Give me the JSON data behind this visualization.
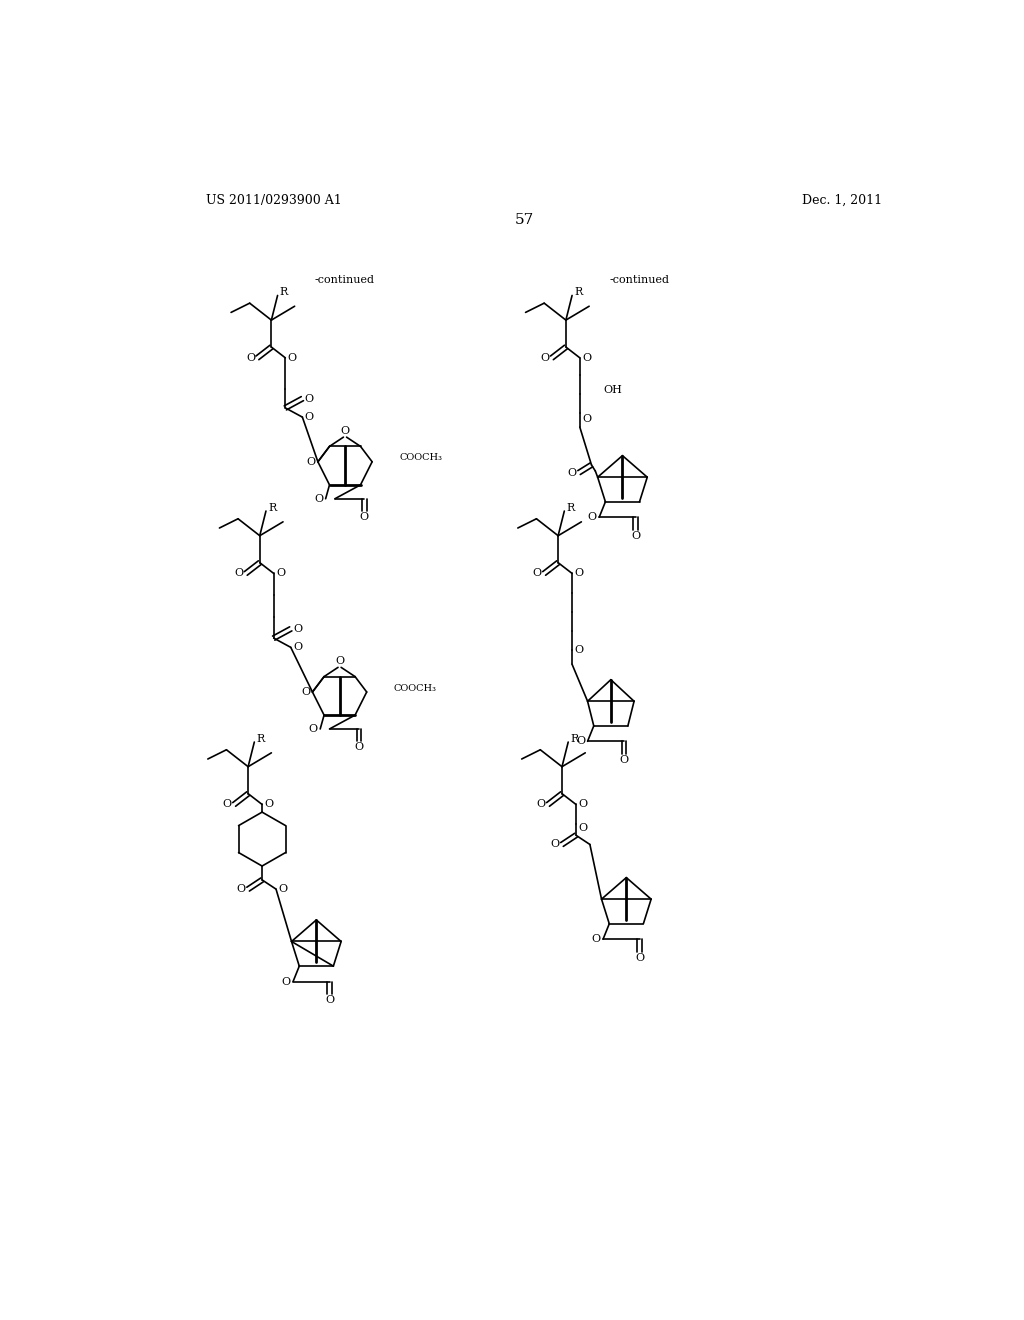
{
  "page_number": "57",
  "patent_number": "US 2011/0293900 A1",
  "date": "Dec. 1, 2011",
  "background_color": "#ffffff",
  "continued_label": "-continued",
  "figsize": [
    10.24,
    13.2
  ],
  "dpi": 100,
  "lw": 1.2,
  "lw_bold": 2.0,
  "font_size_header": 9,
  "font_size_label": 8,
  "font_size_page": 11
}
